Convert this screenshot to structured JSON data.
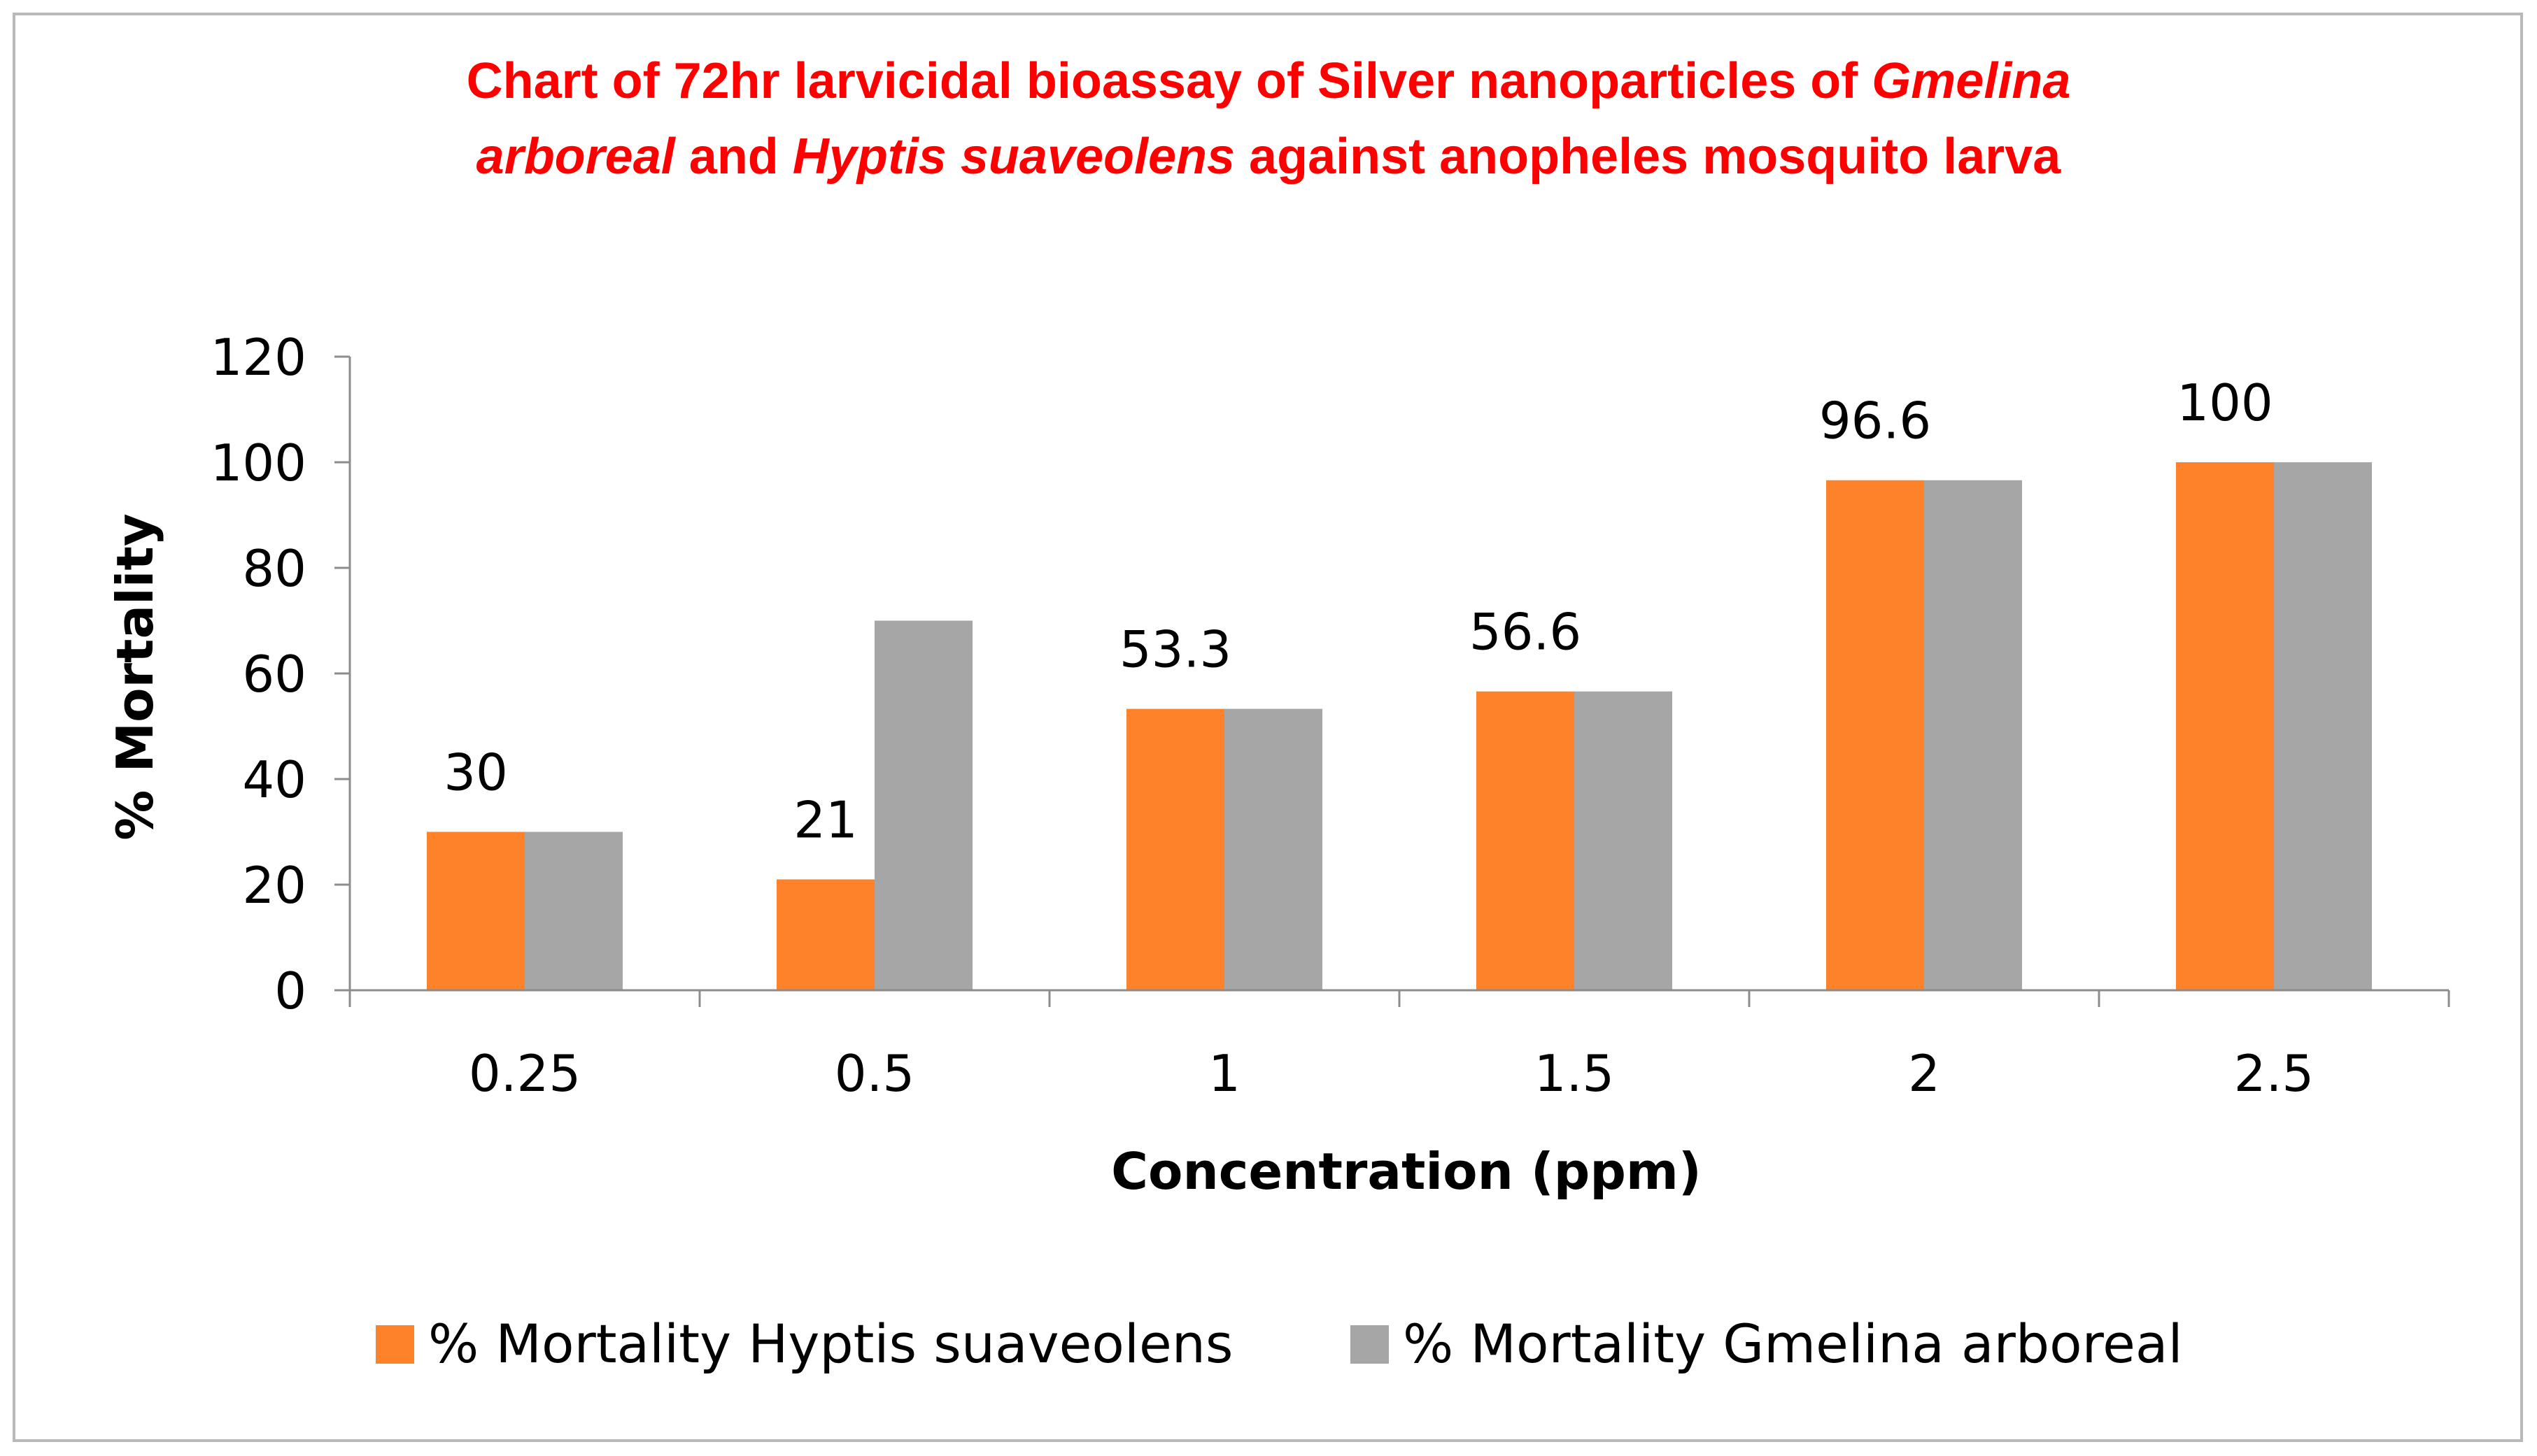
{
  "chart_data": {
    "type": "bar",
    "title": {
      "part1": "Chart of 72hr larvicidal bioassay of Silver nanoparticles of ",
      "species1_line1": "Gmelina",
      "species1_line2": "arboreal",
      "part2": " and ",
      "species2": "Hyptis suaveolens",
      "part3": " against anopheles mosquito larva"
    },
    "xlabel": "Concentration (ppm)",
    "ylabel": "% Mortality",
    "categories": [
      "0.25",
      "0.5",
      "1",
      "1.5",
      "2",
      "2.5"
    ],
    "ylim": [
      0,
      120
    ],
    "yticks": [
      0,
      20,
      40,
      60,
      80,
      100,
      120
    ],
    "grid": false,
    "legend_position": "bottom",
    "series": [
      {
        "name": "% Mortality Hyptis suaveolens",
        "color": "#fd822a",
        "values": [
          30,
          21,
          53.3,
          56.6,
          96.6,
          100
        ],
        "data_labels": [
          "30",
          "21",
          "53.3",
          "56.6",
          "96.6",
          "100"
        ]
      },
      {
        "name": "% Mortality Gmelina arboreal",
        "color": "#a6a6a6",
        "values": [
          30,
          70,
          53.3,
          56.6,
          96.6,
          100
        ]
      }
    ]
  }
}
